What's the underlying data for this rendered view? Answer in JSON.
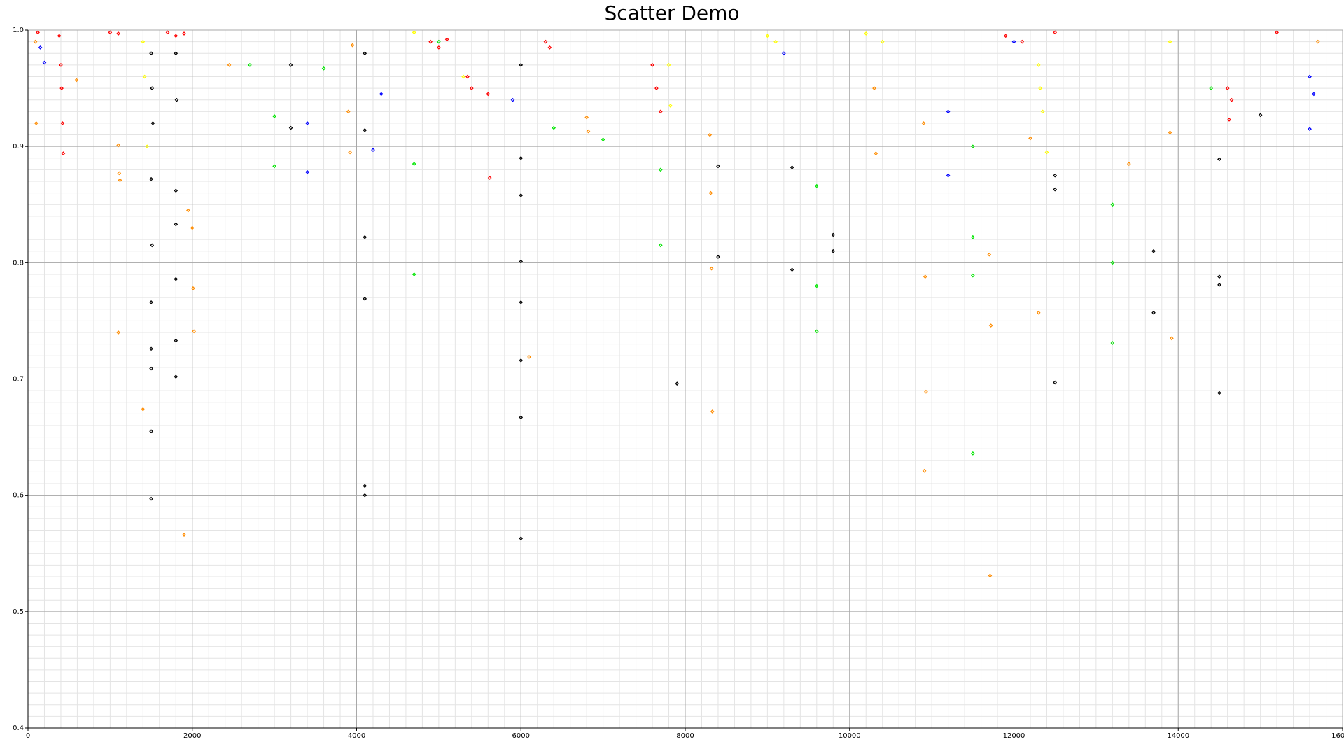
{
  "chart_data": {
    "type": "scatter",
    "title": "Scatter Demo",
    "xlim": [
      0,
      16000
    ],
    "xticks": [
      0,
      2000,
      4000,
      6000,
      8000,
      10000,
      12000,
      14000,
      16000
    ],
    "ylim": [
      0.4,
      1.0
    ],
    "yticks": [
      {
        "value": 1.0,
        "label": "1.0"
      },
      0.9,
      0.8,
      0.7,
      0.6,
      0.5,
      0.4
    ],
    "grid": true,
    "minor_grid": {
      "x": 200,
      "y": 0.01
    },
    "series": [
      {
        "color": "#ff0000",
        "x": [
          120,
          380,
          400,
          410,
          420,
          430,
          1000,
          1100,
          1700,
          1800,
          1900,
          4900,
          5000,
          5100,
          5350,
          5400,
          5600,
          5620,
          6300,
          6350,
          7600,
          7650,
          7700,
          11900,
          12100,
          12500,
          14600,
          14620,
          14650,
          15200
        ],
        "values": [
          0.998,
          0.995,
          0.97,
          0.95,
          0.92,
          0.894,
          0.998,
          0.997,
          0.998,
          0.995,
          0.997,
          0.99,
          0.985,
          0.992,
          0.96,
          0.95,
          0.945,
          0.873,
          0.99,
          0.985,
          0.97,
          0.95,
          0.93,
          0.995,
          0.99,
          0.998,
          0.95,
          0.923,
          0.94,
          0.998
        ]
      },
      {
        "color": "#ff8c00",
        "x": [
          90,
          100,
          590,
          1100,
          1110,
          1120,
          1100,
          1400,
          1900,
          1950,
          2000,
          2010,
          2020,
          2450,
          3900,
          3920,
          3950,
          6100,
          6800,
          6820,
          8300,
          8310,
          8320,
          8330,
          10300,
          10320,
          10900,
          10920,
          10930,
          10910,
          11700,
          11720,
          11710,
          12200,
          12300,
          13400,
          13900,
          13920,
          15700
        ],
        "values": [
          0.99,
          0.92,
          0.957,
          0.901,
          0.877,
          0.871,
          0.74,
          0.674,
          0.566,
          0.845,
          0.83,
          0.778,
          0.741,
          0.97,
          0.93,
          0.895,
          0.987,
          0.719,
          0.925,
          0.913,
          0.91,
          0.86,
          0.795,
          0.672,
          0.95,
          0.894,
          0.92,
          0.788,
          0.689,
          0.621,
          0.807,
          0.746,
          0.531,
          0.907,
          0.757,
          0.885,
          0.912,
          0.735,
          0.99
        ]
      },
      {
        "color": "#ffff00",
        "x": [
          1400,
          1420,
          1450,
          4700,
          5300,
          7800,
          7820,
          9000,
          9100,
          10200,
          10400,
          12300,
          12320,
          12350,
          12400,
          13900
        ],
        "values": [
          0.99,
          0.96,
          0.9,
          0.998,
          0.96,
          0.97,
          0.935,
          0.995,
          0.99,
          0.997,
          0.99,
          0.97,
          0.95,
          0.93,
          0.895,
          0.99
        ]
      },
      {
        "color": "#000000",
        "x": [
          1500,
          1510,
          1520,
          1500,
          1510,
          1500,
          1500,
          1500,
          1500,
          1500,
          1800,
          1810,
          1800,
          1800,
          1800,
          1800,
          1800,
          3200,
          3200,
          4100,
          4100,
          4100,
          4100,
          4100,
          4100,
          6000,
          6000,
          6000,
          6000,
          6000,
          6000,
          6000,
          6000,
          7900,
          8400,
          8400,
          9300,
          9300,
          9800,
          9800,
          12500,
          12500,
          12500,
          13700,
          13700,
          14500,
          14500,
          14500,
          14500,
          15000
        ],
        "values": [
          0.98,
          0.95,
          0.92,
          0.872,
          0.815,
          0.766,
          0.726,
          0.709,
          0.655,
          0.597,
          0.98,
          0.94,
          0.862,
          0.833,
          0.786,
          0.733,
          0.702,
          0.97,
          0.916,
          0.98,
          0.914,
          0.822,
          0.769,
          0.608,
          0.6,
          0.97,
          0.89,
          0.858,
          0.801,
          0.766,
          0.716,
          0.667,
          0.563,
          0.696,
          0.883,
          0.805,
          0.882,
          0.794,
          0.824,
          0.81,
          0.875,
          0.863,
          0.697,
          0.81,
          0.757,
          0.889,
          0.788,
          0.781,
          0.688,
          0.927
        ]
      },
      {
        "color": "#00e600",
        "x": [
          2700,
          3000,
          3000,
          3600,
          4700,
          4700,
          5000,
          6400,
          7000,
          7700,
          7700,
          9600,
          9600,
          9600,
          11500,
          11500,
          11500,
          11500,
          13200,
          13200,
          13200,
          14400
        ],
        "values": [
          0.97,
          0.926,
          0.883,
          0.967,
          0.79,
          0.885,
          0.99,
          0.916,
          0.906,
          0.88,
          0.815,
          0.866,
          0.78,
          0.741,
          0.9,
          0.822,
          0.789,
          0.636,
          0.85,
          0.8,
          0.731,
          0.95
        ]
      },
      {
        "color": "#0000ff",
        "x": [
          150,
          200,
          3400,
          3400,
          4200,
          4300,
          5900,
          9200,
          11200,
          11200,
          12000,
          15600,
          15600,
          15650
        ],
        "values": [
          0.985,
          0.972,
          0.878,
          0.92,
          0.897,
          0.945,
          0.94,
          0.98,
          0.875,
          0.93,
          0.99,
          0.915,
          0.96,
          0.945
        ]
      }
    ]
  }
}
